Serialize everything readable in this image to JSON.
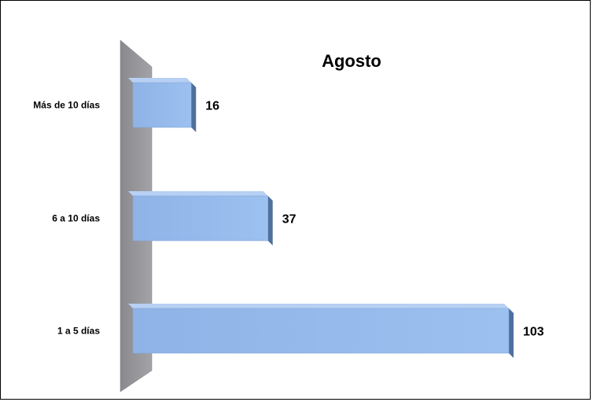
{
  "chart_data": {
    "type": "bar",
    "orientation": "horizontal",
    "title": "Agosto",
    "categories": [
      "Más de 10 días",
      "6 a 10 días",
      "1 a 5 días"
    ],
    "values": [
      16,
      37,
      103
    ],
    "data_labels": [
      "16",
      "37",
      "103"
    ],
    "xlabel": "",
    "ylabel": "",
    "xlim": [
      0,
      103
    ],
    "grid": false,
    "legend": "none",
    "bar_color": "#95b9ea",
    "bar_side_color": "#4f6f9c",
    "wall_color": "#959599"
  }
}
